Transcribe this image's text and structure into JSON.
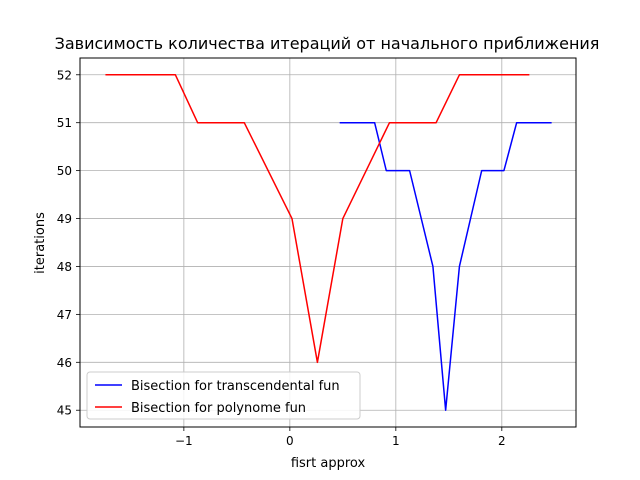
{
  "chart_data": {
    "type": "line",
    "title": "Зависимость количества итераций от начального приближения",
    "xlabel": "fisrt approx",
    "ylabel": "iterations",
    "xlim": [
      -1.98,
      2.7
    ],
    "ylim": [
      44.65,
      52.35
    ],
    "xticks": [
      -1,
      0,
      1,
      2
    ],
    "xtick_labels": [
      "−1",
      "0",
      "1",
      "2"
    ],
    "yticks": [
      45,
      46,
      47,
      48,
      49,
      50,
      51,
      52
    ],
    "ytick_labels": [
      "45",
      "46",
      "47",
      "48",
      "49",
      "50",
      "51",
      "52"
    ],
    "grid": true,
    "legend_position": "lower-left",
    "series": [
      {
        "name": "Bisection for transcendental fun",
        "color": "#0000ff",
        "x": [
          0.47,
          0.8,
          0.91,
          1.13,
          1.35,
          1.47,
          1.6,
          1.81,
          2.02,
          2.14,
          2.47
        ],
        "y": [
          51,
          51,
          50,
          50,
          48,
          45,
          48,
          50,
          50,
          51,
          51
        ]
      },
      {
        "name": "Bisection for polynome fun",
        "color": "#ff0000",
        "x": [
          -1.74,
          -1.08,
          -0.87,
          -0.43,
          0.02,
          0.26,
          0.5,
          0.94,
          1.38,
          1.6,
          2.26
        ],
        "y": [
          52,
          52,
          51,
          51,
          49,
          46,
          49,
          51,
          51,
          52,
          52
        ]
      }
    ]
  }
}
